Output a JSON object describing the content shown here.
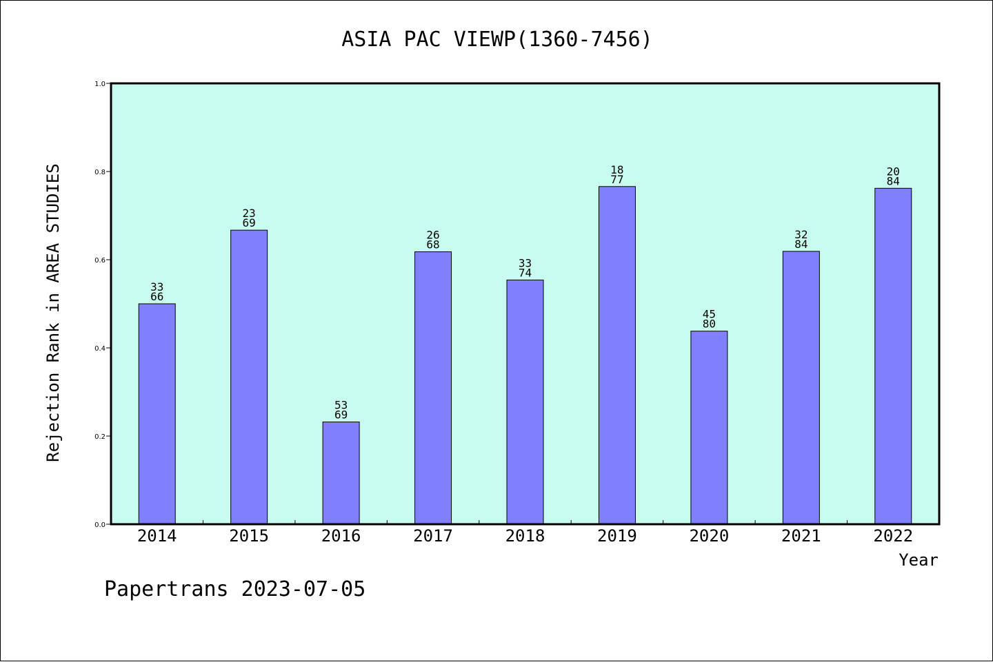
{
  "chart_data": {
    "type": "bar",
    "title": "ASIA PAC VIEWP(1360-7456)",
    "xlabel": "Year",
    "ylabel": "Rejection Rank in AREA STUDIES",
    "ylim": [
      0,
      1.0
    ],
    "yticks": [
      "0.0",
      "0.2",
      "0.4",
      "0.6",
      "0.8",
      "1.0"
    ],
    "categories": [
      "2014",
      "2015",
      "2016",
      "2017",
      "2018",
      "2019",
      "2020",
      "2021",
      "2022"
    ],
    "values": [
      0.5,
      0.667,
      0.232,
      0.618,
      0.554,
      0.766,
      0.438,
      0.619,
      0.762
    ],
    "bar_labels": [
      [
        "33",
        "66"
      ],
      [
        "23",
        "69"
      ],
      [
        "53",
        "69"
      ],
      [
        "26",
        "68"
      ],
      [
        "33",
        "74"
      ],
      [
        "18",
        "77"
      ],
      [
        "45",
        "80"
      ],
      [
        "32",
        "84"
      ],
      [
        "20",
        "84"
      ]
    ],
    "grid": false,
    "colors": {
      "plot_background": "#c8fcee",
      "bar_fill": "#8080ff",
      "bar_stroke": "#000000"
    }
  },
  "footer": "Papertrans 2023-07-05"
}
